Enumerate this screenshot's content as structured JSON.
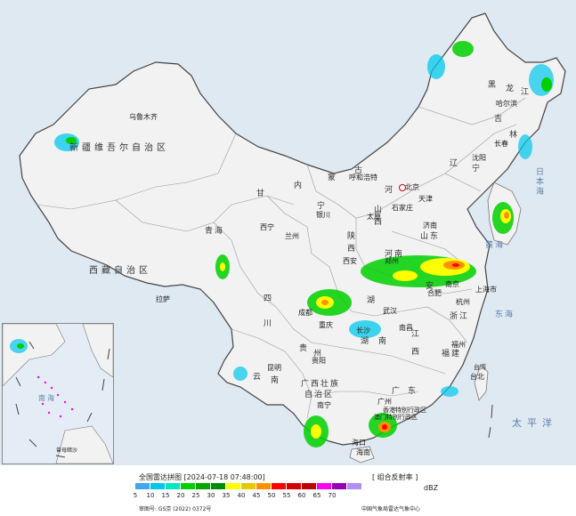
{
  "map": {
    "regions": [
      {
        "key": "xinjiang",
        "label": "新疆维吾尔自治区"
      },
      {
        "key": "xizang",
        "label": "西藏自治区"
      },
      {
        "key": "qinghai",
        "label": "青海"
      },
      {
        "key": "gansu",
        "label": "甘"
      },
      {
        "key": "neimenggu1",
        "label": "内"
      },
      {
        "key": "neimenggu2",
        "label": "蒙"
      },
      {
        "key": "neimenggu3",
        "label": "古"
      },
      {
        "key": "heilongjiang1",
        "label": "黑"
      },
      {
        "key": "heilongjiang2",
        "label": "龙"
      },
      {
        "key": "heilongjiang3",
        "label": "江"
      },
      {
        "key": "jilin",
        "label": "吉"
      },
      {
        "key": "jilin2",
        "label": "林"
      },
      {
        "key": "liaoning1",
        "label": "辽"
      },
      {
        "key": "liaoning2",
        "label": "宁"
      },
      {
        "key": "shanxi1",
        "label": "山"
      },
      {
        "key": "shanxi2",
        "label": "西"
      },
      {
        "key": "shaanxi1",
        "label": "陕"
      },
      {
        "key": "shaanxi2",
        "label": "西"
      },
      {
        "key": "shandong",
        "label": "山东"
      },
      {
        "key": "henan",
        "label": "河南"
      },
      {
        "key": "sichuan1",
        "label": "四"
      },
      {
        "key": "sichuan2",
        "label": "川"
      },
      {
        "key": "hubei",
        "label": "湖"
      },
      {
        "key": "hunan1",
        "label": "湖"
      },
      {
        "key": "hunan2",
        "label": "南"
      },
      {
        "key": "jiangxi1",
        "label": "江"
      },
      {
        "key": "jiangxi2",
        "label": "西"
      },
      {
        "key": "zhejiang",
        "label": "浙江"
      },
      {
        "key": "fujian",
        "label": "福建"
      },
      {
        "key": "guizhou1",
        "label": "贵"
      },
      {
        "key": "guizhou2",
        "label": "州"
      },
      {
        "key": "yunnan1",
        "label": "云"
      },
      {
        "key": "yunnan2",
        "label": "南"
      },
      {
        "key": "guangxi1",
        "label": "广西壮族"
      },
      {
        "key": "guangxi2",
        "label": "自治区"
      },
      {
        "key": "guangdong1",
        "label": "广"
      },
      {
        "key": "guangdong2",
        "label": "东"
      },
      {
        "key": "hebei",
        "label": "河"
      },
      {
        "key": "ningxia",
        "label": "宁"
      },
      {
        "key": "anhui",
        "label": "安"
      },
      {
        "key": "shanghai",
        "label": "上海市"
      },
      {
        "key": "hainan",
        "label": "海南"
      }
    ],
    "cities": [
      {
        "key": "wulumuqi",
        "label": "乌鲁木齐"
      },
      {
        "key": "haerbin",
        "label": "哈尔滨"
      },
      {
        "key": "changchun",
        "label": "长春"
      },
      {
        "key": "shenyang",
        "label": "沈阳"
      },
      {
        "key": "huhehaote",
        "label": "呼和浩特"
      },
      {
        "key": "beijing",
        "label": "北京"
      },
      {
        "key": "tianjin",
        "label": "天津"
      },
      {
        "key": "shijiazhuang",
        "label": "石家庄"
      },
      {
        "key": "taiyuan",
        "label": "太原"
      },
      {
        "key": "jinan",
        "label": "济南"
      },
      {
        "key": "yinchuan",
        "label": "银川"
      },
      {
        "key": "xining",
        "label": "西宁"
      },
      {
        "key": "lanzhou",
        "label": "兰州"
      },
      {
        "key": "xian",
        "label": "西安"
      },
      {
        "key": "zhengzhou",
        "label": "郑州"
      },
      {
        "key": "hefei",
        "label": "合肥"
      },
      {
        "key": "nanjing",
        "label": "南京"
      },
      {
        "key": "hangzhou",
        "label": "杭州"
      },
      {
        "key": "wuhan",
        "label": "武汉"
      },
      {
        "key": "chengdu",
        "label": "成都"
      },
      {
        "key": "chongqing",
        "label": "重庆"
      },
      {
        "key": "changsha",
        "label": "长沙"
      },
      {
        "key": "nanchang",
        "label": "南昌"
      },
      {
        "key": "fuzhou",
        "label": "福州"
      },
      {
        "key": "guiyang",
        "label": "贵阳"
      },
      {
        "key": "kunming",
        "label": "昆明"
      },
      {
        "key": "nanning",
        "label": "南宁"
      },
      {
        "key": "guangzhou",
        "label": "广州"
      },
      {
        "key": "lasa",
        "label": "拉萨"
      },
      {
        "key": "taibei",
        "label": "台北"
      },
      {
        "key": "xianggang",
        "label": "香港特别行政区"
      },
      {
        "key": "aomen",
        "label": "澳门特别行政区"
      },
      {
        "key": "haikou",
        "label": "海口"
      }
    ],
    "seas": {
      "rihai": "日本海",
      "huanghai": "黄海",
      "donghai": "东海",
      "taipingyang": "太平洋",
      "taiwan": "台湾",
      "nanhai": "南海",
      "zengmu": "曾母暗沙"
    }
  },
  "footer": {
    "title": "全国雷达拼图 [2024-07-18 07:48:00]",
    "product": "[ 组合反射率 ]",
    "unit": "dBZ",
    "scale": [
      {
        "v": "5",
        "c": "#42a6f0"
      },
      {
        "v": "10",
        "c": "#00c8ec"
      },
      {
        "v": "15",
        "c": "#00e8c0"
      },
      {
        "v": "20",
        "c": "#00d000"
      },
      {
        "v": "25",
        "c": "#00a800"
      },
      {
        "v": "30",
        "c": "#008c00"
      },
      {
        "v": "35",
        "c": "#ffff00"
      },
      {
        "v": "40",
        "c": "#e8c800"
      },
      {
        "v": "45",
        "c": "#ff9000"
      },
      {
        "v": "50",
        "c": "#ff0000"
      },
      {
        "v": "55",
        "c": "#d60000"
      },
      {
        "v": "60",
        "c": "#c00000"
      },
      {
        "v": "65",
        "c": "#ff00f0"
      },
      {
        "v": "70",
        "c": "#9600b4"
      },
      {
        "v": "",
        "c": "#ad90f0"
      }
    ],
    "approval": "审图号: GS京 (2022) 0372号",
    "source": "中国气象局雷达气象中心"
  }
}
